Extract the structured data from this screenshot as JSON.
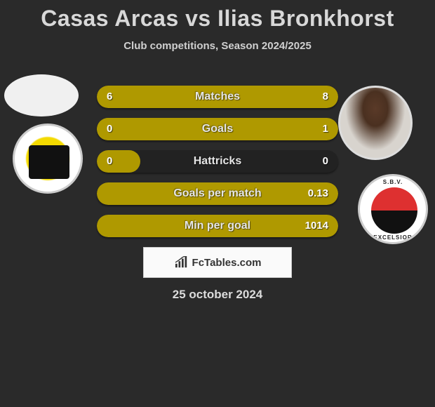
{
  "title": "Casas Arcas vs Ilias Bronkhorst",
  "subtitle": "Club competitions, Season 2024/2025",
  "date": "25 october 2024",
  "watermark": "FcTables.com",
  "colors": {
    "background": "#2a2a2a",
    "bar_track": "#222222",
    "bar_fill": "#af9900",
    "text": "#e6e6e6"
  },
  "player_left": {
    "name": "Casas Arcas",
    "club": "Cambuur",
    "badge_primary": "#f4da00",
    "badge_accent": "#000000"
  },
  "player_right": {
    "name": "Ilias Bronkhorst",
    "club": "Excelsior",
    "badge_top": "#de3030",
    "badge_bottom": "#000000",
    "badge_text_top": "S.B.V.",
    "badge_text_bottom": "EXCELSIOR"
  },
  "stats": [
    {
      "label": "Matches",
      "left_value": "6",
      "right_value": "8",
      "left_pct": 42,
      "right_pct": 58,
      "mode": "split"
    },
    {
      "label": "Goals",
      "left_value": "0",
      "right_value": "1",
      "left_pct": 18,
      "right_pct": 100,
      "mode": "right-full"
    },
    {
      "label": "Hattricks",
      "left_value": "0",
      "right_value": "0",
      "left_pct": 18,
      "right_pct": 0,
      "mode": "left-only"
    },
    {
      "label": "Goals per match",
      "left_value": "",
      "right_value": "0.13",
      "left_pct": 0,
      "right_pct": 100,
      "mode": "full"
    },
    {
      "label": "Min per goal",
      "left_value": "",
      "right_value": "1014",
      "left_pct": 0,
      "right_pct": 100,
      "mode": "full"
    }
  ]
}
